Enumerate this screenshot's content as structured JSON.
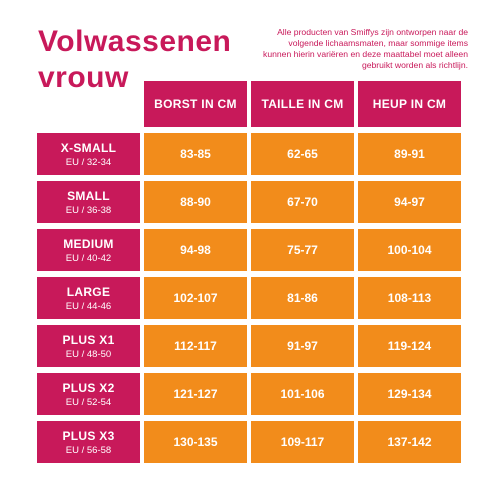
{
  "title": {
    "line1": "Volwassenen",
    "line2": "vrouw"
  },
  "note": "Alle producten van Smiffys zijn ontworpen naar de volgende lichaamsmaten, maar sommige items kunnen hierin variëren en deze maattabel moet alleen gebruikt worden als richtlijn.",
  "columns": [
    "BORST IN CM",
    "TAILLE IN CM",
    "HEUP IN CM"
  ],
  "rows": [
    {
      "size": "X-SMALL",
      "eu": "EU / 32-34",
      "values": [
        "83-85",
        "62-65",
        "89-91"
      ]
    },
    {
      "size": "SMALL",
      "eu": "EU / 36-38",
      "values": [
        "88-90",
        "67-70",
        "94-97"
      ]
    },
    {
      "size": "MEDIUM",
      "eu": "EU / 40-42",
      "values": [
        "94-98",
        "75-77",
        "100-104"
      ]
    },
    {
      "size": "LARGE",
      "eu": "EU / 44-46",
      "values": [
        "102-107",
        "81-86",
        "108-113"
      ]
    },
    {
      "size": "PLUS X1",
      "eu": "EU / 48-50",
      "values": [
        "112-117",
        "91-97",
        "119-124"
      ]
    },
    {
      "size": "PLUS X2",
      "eu": "EU / 52-54",
      "values": [
        "121-127",
        "101-106",
        "129-134"
      ]
    },
    {
      "size": "PLUS X3",
      "eu": "EU / 56-58",
      "values": [
        "130-135",
        "109-117",
        "137-142"
      ]
    }
  ],
  "colors": {
    "accent": "#c8195a",
    "cell": "#f28c1b",
    "text_on_color": "#ffffff"
  }
}
